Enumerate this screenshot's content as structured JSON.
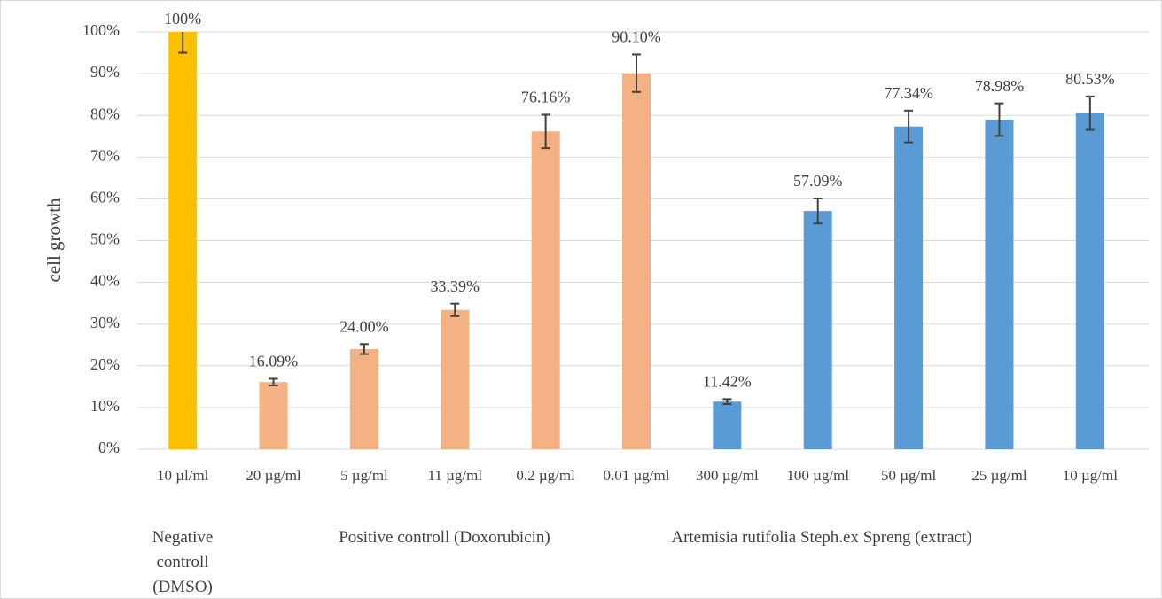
{
  "chart_data": {
    "type": "bar",
    "y_label": "cell growth",
    "categories": [
      "10 µl/ml",
      "20 µg/ml",
      "5 µg/ml",
      "11 µg/ml",
      "0.2 µg/ml",
      "0.01 µg/ml",
      "300 µg/ml",
      "100 µg/ml",
      "50 µg/ml",
      "25 µg/ml",
      "10 µg/ml"
    ],
    "group_labels": [
      "Negative controll (DMSO)",
      "Positive controll (Doxorubicin)",
      "Artemisia  rutifolia Steph.ex  Spreng  (extract)"
    ],
    "series": [
      {
        "values": [
          100,
          16.09,
          24.0,
          33.39,
          76.16,
          90.1,
          11.42,
          57.09,
          77.34,
          78.98,
          80.53
        ],
        "value_labels": [
          "100%",
          "16.09%",
          "24.00%",
          "33.39%",
          "76.16%",
          "90.10%",
          "11.42%",
          "57.09%",
          "77.34%",
          "78.98%",
          "80.53%"
        ],
        "errors": [
          5,
          0.8,
          1.2,
          1.5,
          4,
          4.5,
          0.6,
          3,
          3.8,
          3.9,
          4
        ],
        "colors": [
          "#ffc000",
          "#f4b183",
          "#f4b183",
          "#f4b183",
          "#f4b183",
          "#f4b183",
          "#5b9bd5",
          "#5b9bd5",
          "#5b9bd5",
          "#5b9bd5",
          "#5b9bd5"
        ]
      }
    ],
    "ylim": [
      0,
      100
    ],
    "yticks": [
      {
        "value": 0,
        "label": "0%"
      },
      {
        "value": 10,
        "label": "10%"
      },
      {
        "value": 20,
        "label": "20%"
      },
      {
        "value": 30,
        "label": "30%"
      },
      {
        "value": 40,
        "label": "40%"
      },
      {
        "value": 50,
        "label": "50%"
      },
      {
        "value": 60,
        "label": "60%"
      },
      {
        "value": 70,
        "label": "70%"
      },
      {
        "value": 80,
        "label": "80%"
      },
      {
        "value": 90,
        "label": "90%"
      },
      {
        "value": 100,
        "label": "100%"
      }
    ],
    "grid": true
  }
}
